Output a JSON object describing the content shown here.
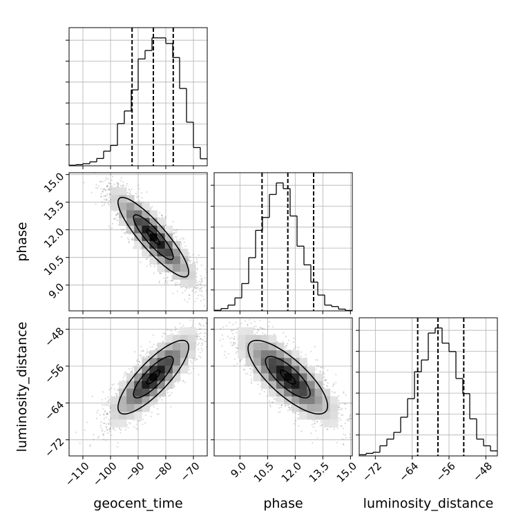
{
  "chart_data": {
    "type": "corner",
    "grid": true,
    "parameters": [
      "geocent_time",
      "phase",
      "luminosity_distance"
    ],
    "ranges": {
      "geocent_time": [
        -115,
        -65
      ],
      "phase": [
        7.6,
        15.1
      ],
      "luminosity_distance": [
        -75.5,
        -45.5
      ]
    },
    "ticks": {
      "geocent_time": [
        -110,
        -100,
        -90,
        -80,
        -70
      ],
      "phase": [
        9.0,
        10.5,
        12.0,
        13.5,
        15.0
      ],
      "luminosity_distance": [
        -72,
        -64,
        -56,
        -48
      ]
    },
    "tick_labels": {
      "geocent_time": [
        "−110",
        "−100",
        "−90",
        "−80",
        "−70"
      ],
      "phase": [
        "9.0",
        "10.5",
        "12.0",
        "13.5",
        "15.0"
      ],
      "luminosity_distance": [
        "−72",
        "−64",
        "−56",
        "−48"
      ]
    },
    "quantiles": {
      "geocent_time": [
        -92.2,
        -84.5,
        -77.3
      ],
      "phase": [
        10.2,
        11.6,
        13.0
      ],
      "luminosity_distance": [
        -62.8,
        -58.4,
        -52.8
      ]
    },
    "histograms": {
      "geocent_time": {
        "edges": [
          -115,
          -112.5,
          -110,
          -107.5,
          -105,
          -102.5,
          -100,
          -97.5,
          -95,
          -92.5,
          -90,
          -87.5,
          -85,
          -82.5,
          -80,
          -77.5,
          -75,
          -72.5,
          -70,
          -67.5,
          -65
        ],
        "counts": [
          0.4,
          0.8,
          1.5,
          2.8,
          5.2,
          10.4,
          14.5,
          30,
          39,
          54,
          76,
          82,
          91,
          91,
          87,
          77,
          55,
          31,
          13,
          5
        ]
      },
      "phase": {
        "edges": [
          7.6,
          7.975,
          8.35,
          8.725,
          9.1,
          9.475,
          9.85,
          10.225,
          10.6,
          10.975,
          11.35,
          11.725,
          12.1,
          12.475,
          12.85,
          13.225,
          13.6,
          13.975,
          14.35,
          14.725,
          15.1
        ],
        "counts": [
          0.4,
          1.6,
          4,
          9,
          19,
          37,
          56,
          65,
          81,
          89,
          85,
          66,
          45,
          32,
          20,
          11,
          4,
          3,
          1.2,
          0.3
        ]
      },
      "luminosity_distance": {
        "edges": [
          -75.5,
          -74,
          -72.5,
          -71,
          -69.5,
          -68,
          -66.5,
          -65,
          -63.5,
          -62,
          -60.5,
          -59,
          -57.5,
          -56,
          -54.5,
          -53,
          -51.5,
          -50,
          -48.5,
          -47,
          -45.5
        ],
        "counts": [
          0.7,
          1.5,
          2.2,
          6,
          10,
          14,
          23,
          34,
          50,
          57,
          73,
          76,
          67,
          62,
          46,
          37,
          22,
          10,
          6,
          3
        ]
      }
    },
    "pairs": [
      {
        "x": "geocent_time",
        "y": "phase",
        "center": [
          -84.5,
          11.6
        ],
        "sigma": [
          8.0,
          1.35
        ],
        "rho": -0.88
      },
      {
        "x": "geocent_time",
        "y": "luminosity_distance",
        "center": [
          -84.5,
          -58.4
        ],
        "sigma": [
          8.0,
          5.0
        ],
        "rho": 0.82
      },
      {
        "x": "phase",
        "y": "luminosity_distance",
        "center": [
          11.6,
          -58.4
        ],
        "sigma": [
          1.35,
          5.0
        ],
        "rho": -0.78
      }
    ],
    "density_levels": [
      0.3,
      0.9,
      1.6
    ]
  }
}
